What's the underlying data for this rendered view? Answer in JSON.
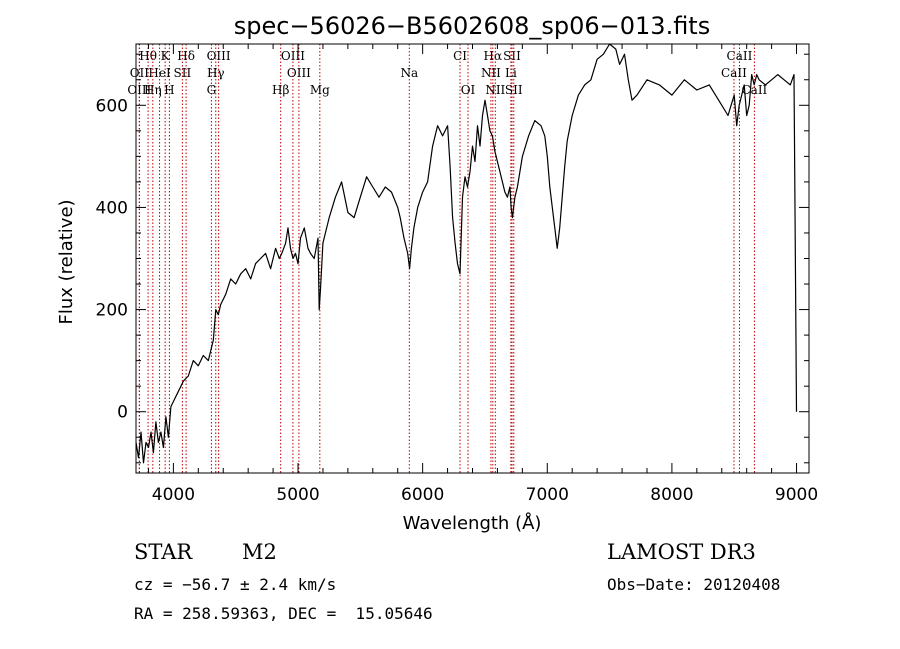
{
  "chart_data": {
    "type": "line",
    "title": "spec−56026−B5602608_sp06−013.fits",
    "xlabel": "Wavelength (Å)",
    "ylabel": "Flux (relative)",
    "xlim": [
      3700,
      9100
    ],
    "ylim": [
      -120,
      720
    ],
    "xticks": [
      4000,
      5000,
      6000,
      7000,
      8000,
      9000
    ],
    "yticks": [
      0,
      200,
      400,
      600
    ],
    "series": [
      {
        "name": "flux",
        "x": [
          3700,
          3720,
          3740,
          3760,
          3780,
          3800,
          3820,
          3840,
          3860,
          3880,
          3900,
          3920,
          3940,
          3960,
          3980,
          4000,
          4040,
          4080,
          4120,
          4160,
          4200,
          4240,
          4280,
          4300,
          4320,
          4340,
          4360,
          4380,
          4420,
          4460,
          4500,
          4540,
          4580,
          4620,
          4660,
          4700,
          4740,
          4780,
          4820,
          4850,
          4870,
          4900,
          4920,
          4940,
          4960,
          4980,
          5000,
          5020,
          5050,
          5080,
          5100,
          5130,
          5160,
          5170,
          5180,
          5200,
          5220,
          5250,
          5300,
          5350,
          5400,
          5450,
          5500,
          5550,
          5600,
          5650,
          5700,
          5750,
          5800,
          5820,
          5850,
          5880,
          5895,
          5910,
          5930,
          5960,
          6000,
          6040,
          6080,
          6120,
          6160,
          6200,
          6220,
          6240,
          6260,
          6280,
          6300,
          6320,
          6340,
          6360,
          6380,
          6400,
          6420,
          6440,
          6460,
          6480,
          6500,
          6520,
          6540,
          6560,
          6580,
          6600,
          6620,
          6640,
          6660,
          6680,
          6700,
          6710,
          6720,
          6740,
          6760,
          6800,
          6850,
          6900,
          6950,
          6980,
          7000,
          7020,
          7040,
          7060,
          7080,
          7100,
          7120,
          7140,
          7160,
          7200,
          7250,
          7300,
          7350,
          7400,
          7450,
          7500,
          7550,
          7580,
          7600,
          7620,
          7650,
          7680,
          7720,
          7800,
          7900,
          8000,
          8100,
          8200,
          8300,
          8400,
          8450,
          8500,
          8520,
          8540,
          8560,
          8580,
          8600,
          8620,
          8640,
          8660,
          8680,
          8700,
          8750,
          8800,
          8850,
          8900,
          8950,
          8980,
          9000
        ],
        "y": [
          -60,
          -90,
          -40,
          -100,
          -60,
          -70,
          -40,
          -80,
          -20,
          -60,
          -40,
          -70,
          -10,
          -50,
          10,
          20,
          40,
          60,
          70,
          100,
          90,
          110,
          100,
          120,
          140,
          200,
          190,
          210,
          230,
          260,
          250,
          270,
          280,
          260,
          290,
          300,
          310,
          280,
          320,
          300,
          310,
          330,
          360,
          320,
          300,
          310,
          290,
          340,
          360,
          320,
          310,
          300,
          340,
          200,
          240,
          330,
          350,
          380,
          420,
          450,
          390,
          380,
          420,
          460,
          440,
          420,
          440,
          430,
          400,
          380,
          340,
          310,
          280,
          320,
          360,
          400,
          430,
          450,
          520,
          560,
          540,
          560,
          480,
          380,
          330,
          290,
          270,
          420,
          460,
          440,
          470,
          520,
          490,
          560,
          520,
          580,
          610,
          580,
          550,
          540,
          510,
          490,
          470,
          450,
          430,
          420,
          440,
          400,
          380,
          420,
          440,
          500,
          540,
          570,
          560,
          540,
          500,
          440,
          400,
          360,
          320,
          360,
          420,
          480,
          530,
          580,
          620,
          640,
          650,
          690,
          700,
          720,
          710,
          680,
          690,
          700,
          650,
          610,
          620,
          650,
          640,
          620,
          650,
          630,
          640,
          600,
          580,
          620,
          560,
          600,
          620,
          640,
          580,
          600,
          660,
          640,
          660,
          650,
          640,
          650,
          660,
          650,
          640,
          660,
          0
        ]
      }
    ],
    "lines": [
      {
        "label": "Hθ",
        "wave": 3797,
        "row": 0
      },
      {
        "label": "K",
        "wave": 3934,
        "row": 0
      },
      {
        "label": "Hδ",
        "wave": 4102,
        "row": 0
      },
      {
        "label": "OIII",
        "wave": 4363,
        "row": 0
      },
      {
        "label": "OIII",
        "wave": 4959,
        "row": 0
      },
      {
        "label": "CI",
        "wave": 6300,
        "row": 0
      },
      {
        "label": "Hα",
        "wave": 6563,
        "row": 0
      },
      {
        "label": "SII",
        "wave": 6717,
        "row": 0
      },
      {
        "label": "CaII",
        "wave": 8542,
        "row": 0
      },
      {
        "label": "OII",
        "wave": 3727,
        "row": 1
      },
      {
        "label": "HeI",
        "wave": 3889,
        "row": 1
      },
      {
        "label": "SII",
        "wave": 4072,
        "row": 1
      },
      {
        "label": "Hγ",
        "wave": 4340,
        "row": 1
      },
      {
        "label": "OIII",
        "wave": 5007,
        "row": 1
      },
      {
        "label": "Na",
        "wave": 5893,
        "row": 1
      },
      {
        "label": "NII",
        "wave": 6548,
        "row": 1
      },
      {
        "label": "Li",
        "wave": 6708,
        "row": 1
      },
      {
        "label": "CaII",
        "wave": 8498,
        "row": 1
      },
      {
        "label": "OIII",
        "wave": 3727,
        "row": 2
      },
      {
        "label": "Hη",
        "wave": 3835,
        "row": 2
      },
      {
        "label": "H",
        "wave": 3968,
        "row": 2
      },
      {
        "label": "G",
        "wave": 4305,
        "row": 2
      },
      {
        "label": "Hβ",
        "wave": 4861,
        "row": 2
      },
      {
        "label": "Mg",
        "wave": 5175,
        "row": 2
      },
      {
        "label": "OI",
        "wave": 6364,
        "row": 2
      },
      {
        "label": "NII",
        "wave": 6583,
        "row": 2
      },
      {
        "label": "SII",
        "wave": 6731,
        "row": 2
      },
      {
        "label": "CaII",
        "wave": 8662,
        "row": 2
      }
    ]
  },
  "info": {
    "object_class": "STAR",
    "subclass": "M2",
    "redshift": "cz = −56.7 ± 2.4 km/s",
    "coords": "RA = 258.59363, DEC =  15.05646",
    "survey": "LAMOST DR3",
    "obs_date": "Obs−Date: 20120408"
  }
}
